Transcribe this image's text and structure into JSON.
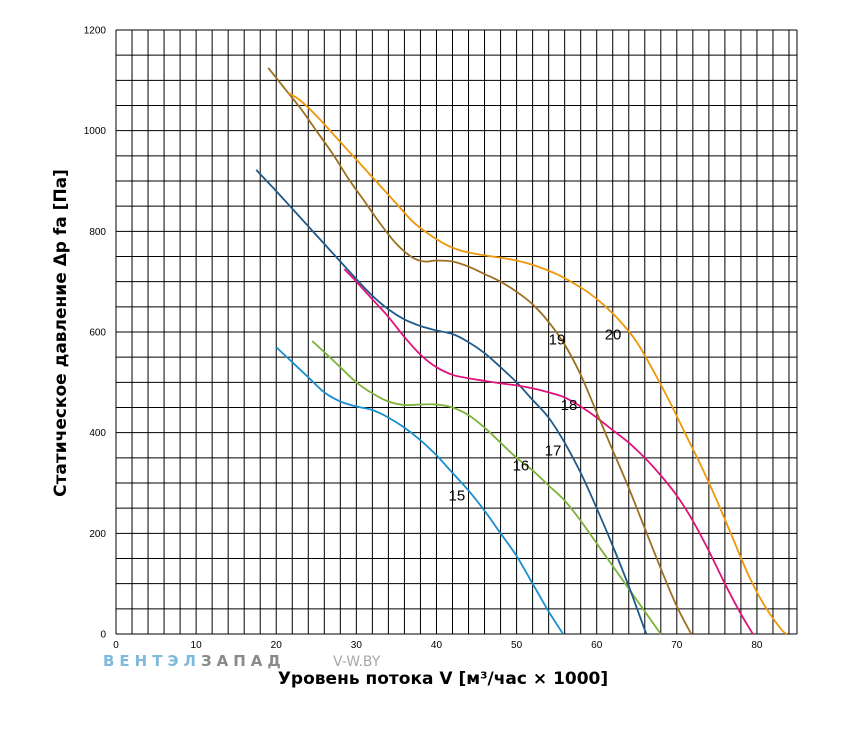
{
  "chart_data": {
    "type": "line",
    "title": "",
    "xlabel": "Уровень потока V [м³/час × 1000]",
    "ylabel": "Статическое давление Δp fa [Па]",
    "xlim": [
      0,
      85
    ],
    "ylim": [
      0,
      1200
    ],
    "x_ticks": [
      0,
      10,
      20,
      30,
      40,
      50,
      60,
      70,
      80
    ],
    "y_ticks": [
      0,
      200,
      400,
      600,
      800,
      1000,
      1200
    ],
    "x_minor_step": 2,
    "y_minor_step": 50,
    "grid": true,
    "legend": "none",
    "series": [
      {
        "name": "15",
        "color": "#1a8fd0",
        "label_at": [
          41.5,
          265
        ],
        "points": [
          [
            20,
            570
          ],
          [
            22,
            540
          ],
          [
            24,
            510
          ],
          [
            26,
            480
          ],
          [
            28,
            462
          ],
          [
            30,
            452
          ],
          [
            32,
            445
          ],
          [
            34,
            430
          ],
          [
            36,
            410
          ],
          [
            38,
            385
          ],
          [
            40,
            355
          ],
          [
            42,
            320
          ],
          [
            44,
            285
          ],
          [
            46,
            245
          ],
          [
            48,
            200
          ],
          [
            50,
            155
          ],
          [
            52,
            100
          ],
          [
            54,
            45
          ],
          [
            55.8,
            0
          ]
        ]
      },
      {
        "name": "16",
        "color": "#7db33a",
        "label_at": [
          49.5,
          325
        ],
        "points": [
          [
            24.5,
            582
          ],
          [
            26,
            560
          ],
          [
            28,
            530
          ],
          [
            30,
            500
          ],
          [
            32,
            478
          ],
          [
            34,
            462
          ],
          [
            36,
            455
          ],
          [
            38,
            456
          ],
          [
            40,
            456
          ],
          [
            42,
            450
          ],
          [
            44,
            435
          ],
          [
            46,
            410
          ],
          [
            48,
            380
          ],
          [
            50,
            350
          ],
          [
            52,
            325
          ],
          [
            54,
            295
          ],
          [
            56,
            265
          ],
          [
            58,
            225
          ],
          [
            60,
            180
          ],
          [
            62,
            135
          ],
          [
            64,
            90
          ],
          [
            66,
            45
          ],
          [
            68,
            0
          ]
        ]
      },
      {
        "name": "17",
        "color": "#1f5a8a",
        "label_at": [
          53.5,
          355
        ],
        "points": [
          [
            17.5,
            922
          ],
          [
            20,
            880
          ],
          [
            22,
            845
          ],
          [
            24,
            810
          ],
          [
            26,
            775
          ],
          [
            28,
            740
          ],
          [
            30,
            705
          ],
          [
            32,
            672
          ],
          [
            34,
            645
          ],
          [
            36,
            625
          ],
          [
            38,
            612
          ],
          [
            40,
            603
          ],
          [
            42,
            596
          ],
          [
            44,
            580
          ],
          [
            46,
            558
          ],
          [
            48,
            530
          ],
          [
            50,
            500
          ],
          [
            52,
            465
          ],
          [
            54,
            430
          ],
          [
            56,
            380
          ],
          [
            58,
            320
          ],
          [
            60,
            250
          ],
          [
            62,
            175
          ],
          [
            64,
            95
          ],
          [
            65.5,
            30
          ],
          [
            66.2,
            0
          ]
        ]
      },
      {
        "name": "18",
        "color": "#e0127a",
        "label_at": [
          55.5,
          445
        ],
        "points": [
          [
            28.5,
            725
          ],
          [
            30,
            700
          ],
          [
            32,
            665
          ],
          [
            34,
            630
          ],
          [
            36,
            590
          ],
          [
            38,
            555
          ],
          [
            40,
            530
          ],
          [
            42,
            515
          ],
          [
            44,
            508
          ],
          [
            46,
            503
          ],
          [
            48,
            498
          ],
          [
            50,
            494
          ],
          [
            52,
            488
          ],
          [
            54,
            480
          ],
          [
            56,
            470
          ],
          [
            58,
            452
          ],
          [
            60,
            430
          ],
          [
            62,
            405
          ],
          [
            64,
            380
          ],
          [
            66,
            350
          ],
          [
            68,
            315
          ],
          [
            70,
            275
          ],
          [
            72,
            225
          ],
          [
            74,
            165
          ],
          [
            76,
            100
          ],
          [
            78,
            40
          ],
          [
            79.5,
            0
          ]
        ]
      },
      {
        "name": "19",
        "color": "#9c7020",
        "label_at": [
          54,
          575
        ],
        "points": [
          [
            19,
            1125
          ],
          [
            21,
            1085
          ],
          [
            23,
            1045
          ],
          [
            25,
            1000
          ],
          [
            27,
            955
          ],
          [
            29,
            905
          ],
          [
            31,
            860
          ],
          [
            33,
            815
          ],
          [
            35,
            775
          ],
          [
            37,
            748
          ],
          [
            38.5,
            740
          ],
          [
            40,
            742
          ],
          [
            42,
            740
          ],
          [
            44,
            730
          ],
          [
            46,
            715
          ],
          [
            48,
            700
          ],
          [
            50,
            680
          ],
          [
            52,
            655
          ],
          [
            54,
            620
          ],
          [
            56,
            575
          ],
          [
            58,
            515
          ],
          [
            60,
            440
          ],
          [
            62,
            365
          ],
          [
            64,
            290
          ],
          [
            66,
            210
          ],
          [
            68,
            130
          ],
          [
            70,
            55
          ],
          [
            71.8,
            0
          ]
        ]
      },
      {
        "name": "20",
        "color": "#f0960a",
        "label_at": [
          61,
          585
        ],
        "points": [
          [
            21.5,
            1075
          ],
          [
            23,
            1060
          ],
          [
            25,
            1030
          ],
          [
            27,
            995
          ],
          [
            29,
            960
          ],
          [
            31,
            925
          ],
          [
            33,
            890
          ],
          [
            35,
            855
          ],
          [
            37,
            820
          ],
          [
            39,
            795
          ],
          [
            41,
            775
          ],
          [
            43,
            762
          ],
          [
            45,
            755
          ],
          [
            47,
            750
          ],
          [
            49,
            745
          ],
          [
            51,
            738
          ],
          [
            53,
            728
          ],
          [
            55,
            715
          ],
          [
            57,
            698
          ],
          [
            59,
            678
          ],
          [
            61,
            652
          ],
          [
            63,
            620
          ],
          [
            65,
            580
          ],
          [
            67,
            525
          ],
          [
            69,
            465
          ],
          [
            71,
            400
          ],
          [
            73,
            335
          ],
          [
            75,
            265
          ],
          [
            77,
            190
          ],
          [
            79,
            115
          ],
          [
            81,
            55
          ],
          [
            83,
            10
          ],
          [
            83.7,
            0
          ]
        ]
      }
    ]
  },
  "watermark": {
    "brand_part1": "ВЕНТЭЛ",
    "brand_part2": "ЗАПАД",
    "site": "V-W.BY",
    "color1": "#7fb9dc",
    "color2": "#8a8a8a",
    "color3": "#a8a8a8"
  }
}
